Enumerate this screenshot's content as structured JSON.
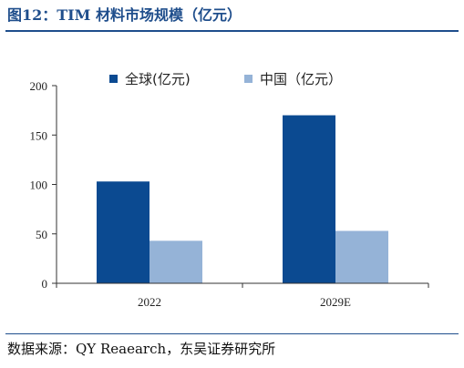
{
  "figure": {
    "title": "图12：TIM 材料市场规模（亿元）",
    "source": "数据来源：QY Reaearch，东吴证券研究所"
  },
  "colors": {
    "title": "#1f4e8c",
    "series_global": "#0b4a91",
    "series_china": "#95b3d7",
    "axis": "#333333"
  },
  "chart_data": {
    "type": "bar",
    "categories": [
      "2022",
      "2029E"
    ],
    "series": [
      {
        "name": "全球(亿元)",
        "values": [
          103,
          170
        ],
        "color": "#0b4a91"
      },
      {
        "name": "中国（亿元）",
        "values": [
          43,
          53
        ],
        "color": "#95b3d7"
      }
    ],
    "yticks": [
      0,
      50,
      100,
      150,
      200
    ],
    "ylim": [
      0,
      200
    ],
    "grid": false,
    "legend_position": "top-center"
  }
}
